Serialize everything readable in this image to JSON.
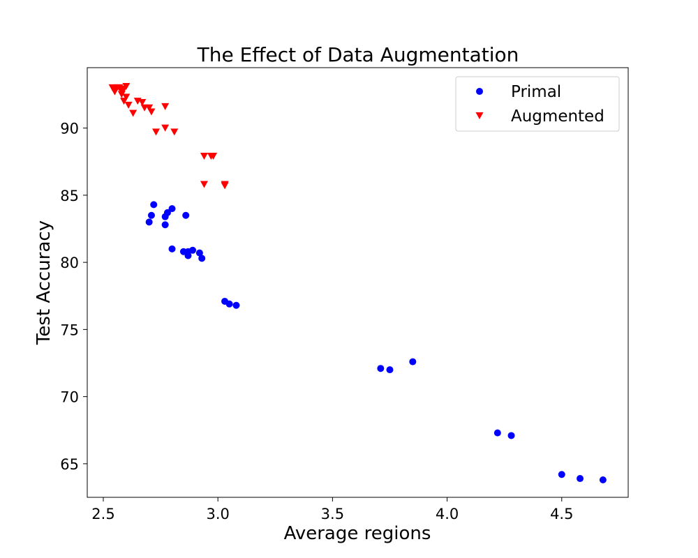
{
  "chart_data": {
    "type": "scatter",
    "title": "The Effect of Data Augmentation",
    "xlabel": "Average regions",
    "ylabel": "Test Accuracy",
    "xlim": [
      2.43,
      4.79
    ],
    "ylim": [
      62.5,
      94.5
    ],
    "x_ticks": [
      "2.5",
      "3.0",
      "3.5",
      "4.0",
      "4.5"
    ],
    "y_ticks": [
      "65",
      "70",
      "75",
      "80",
      "85",
      "90"
    ],
    "grid": false,
    "legend_position": "top-right",
    "series": [
      {
        "name": "Primal",
        "marker": "circle",
        "color": "#0000ff",
        "points": [
          [
            2.72,
            84.3
          ],
          [
            2.71,
            83.5
          ],
          [
            2.8,
            84.0
          ],
          [
            2.78,
            83.7
          ],
          [
            2.77,
            83.4
          ],
          [
            2.86,
            83.5
          ],
          [
            2.7,
            83.0
          ],
          [
            2.77,
            82.8
          ],
          [
            2.8,
            81.0
          ],
          [
            2.85,
            80.8
          ],
          [
            2.87,
            80.8
          ],
          [
            2.89,
            80.9
          ],
          [
            2.92,
            80.7
          ],
          [
            2.87,
            80.5
          ],
          [
            2.93,
            80.3
          ],
          [
            3.03,
            77.1
          ],
          [
            3.05,
            76.9
          ],
          [
            3.08,
            76.8
          ],
          [
            3.71,
            72.1
          ],
          [
            3.75,
            72.0
          ],
          [
            3.85,
            72.6
          ],
          [
            4.22,
            67.3
          ],
          [
            4.28,
            67.1
          ],
          [
            4.5,
            64.2
          ],
          [
            4.58,
            63.9
          ],
          [
            4.68,
            63.8
          ]
        ]
      },
      {
        "name": "Augmented",
        "marker": "triangle-down",
        "color": "#ff0000",
        "points": [
          [
            2.54,
            93.0
          ],
          [
            2.55,
            92.9
          ],
          [
            2.56,
            93.0
          ],
          [
            2.57,
            93.0
          ],
          [
            2.58,
            92.8
          ],
          [
            2.59,
            92.9
          ],
          [
            2.6,
            93.1
          ],
          [
            2.55,
            92.7
          ],
          [
            2.58,
            92.5
          ],
          [
            2.6,
            92.3
          ],
          [
            2.59,
            92.0
          ],
          [
            2.61,
            91.7
          ],
          [
            2.63,
            91.1
          ],
          [
            2.65,
            92.0
          ],
          [
            2.67,
            91.9
          ],
          [
            2.68,
            91.5
          ],
          [
            2.7,
            91.5
          ],
          [
            2.71,
            91.2
          ],
          [
            2.77,
            91.6
          ],
          [
            2.73,
            89.7
          ],
          [
            2.77,
            90.0
          ],
          [
            2.81,
            89.7
          ],
          [
            2.94,
            87.9
          ],
          [
            2.97,
            87.9
          ],
          [
            2.98,
            87.9
          ],
          [
            2.94,
            85.8
          ],
          [
            3.03,
            85.8
          ],
          [
            3.03,
            85.7
          ]
        ]
      }
    ]
  }
}
